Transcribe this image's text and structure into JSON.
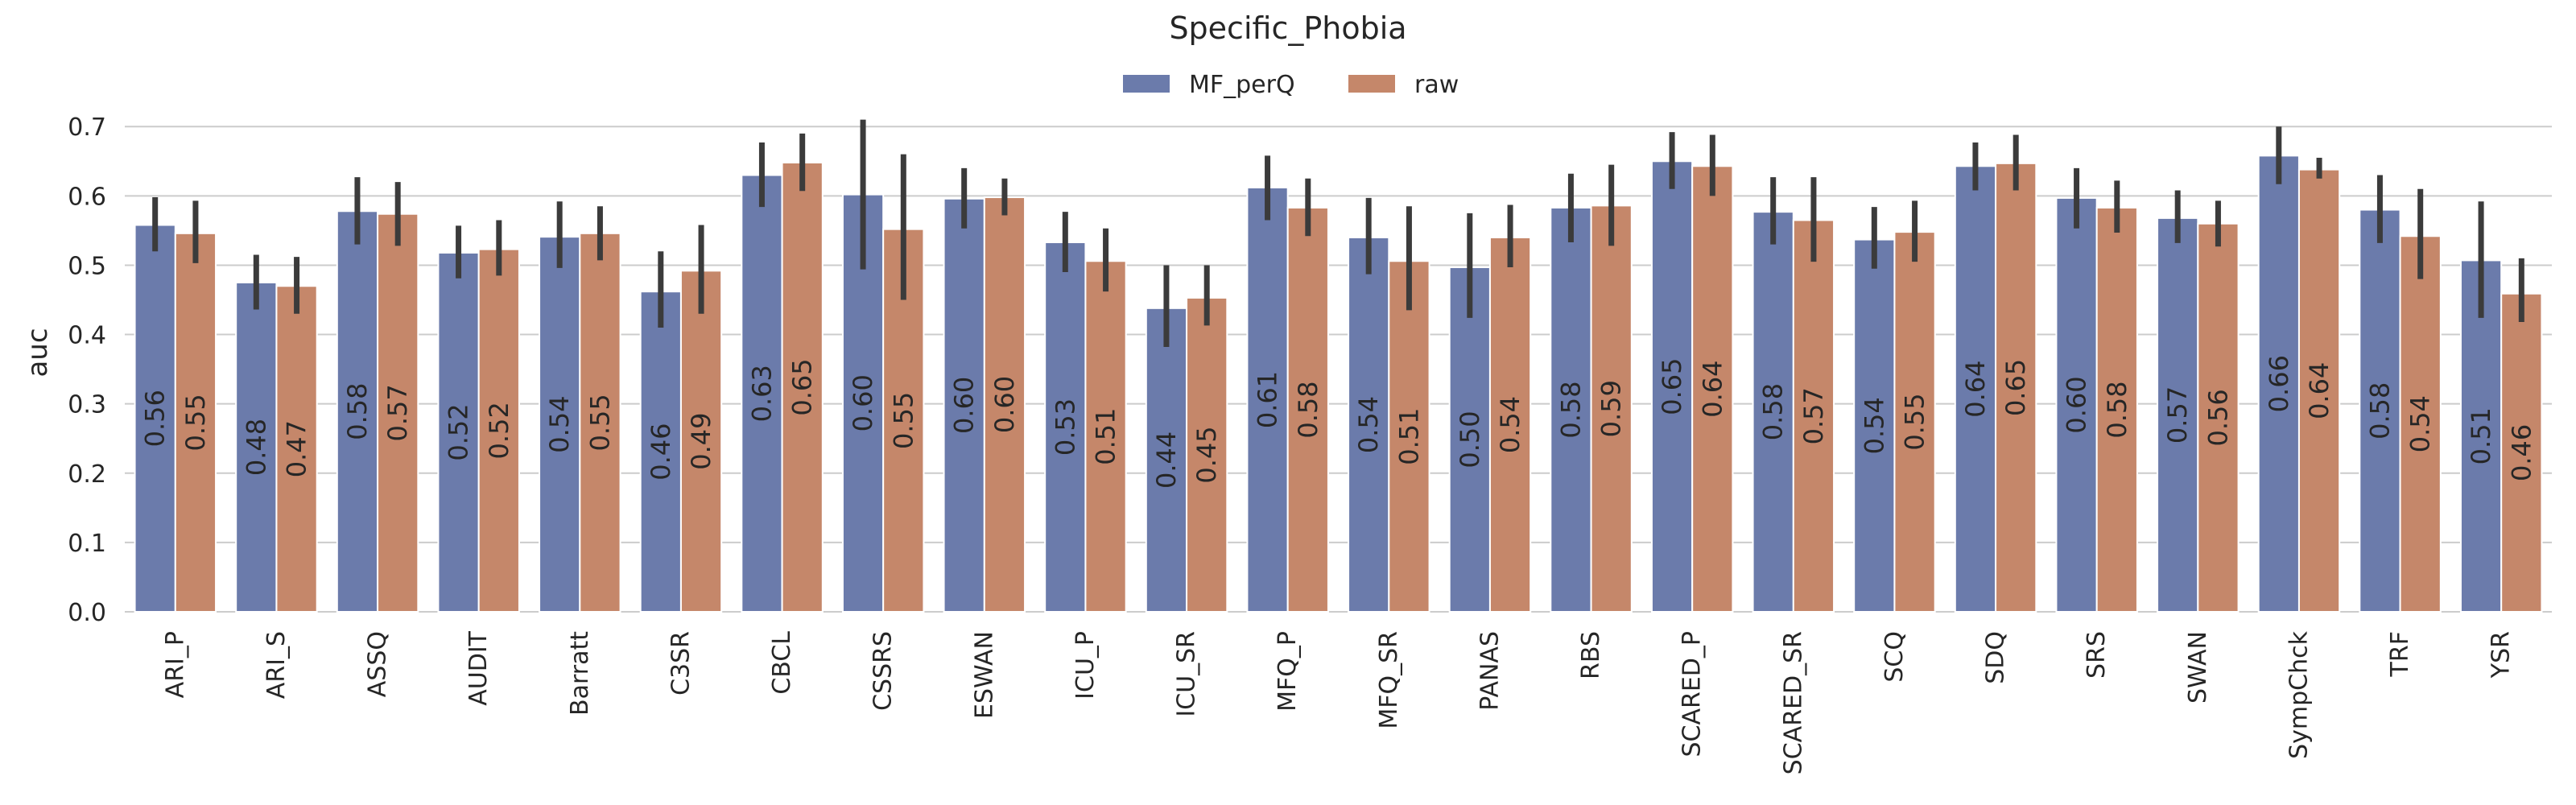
{
  "chart_data": {
    "type": "bar",
    "title": "Specific_Phobia",
    "xlabel": "",
    "ylabel": "auc",
    "ylim": [
      0,
      0.72
    ],
    "yticks": [
      "0.0",
      "0.1",
      "0.2",
      "0.3",
      "0.4",
      "0.5",
      "0.6",
      "0.7"
    ],
    "grid": true,
    "legend_position": "top-center",
    "categories": [
      "ARI_P",
      "ARI_S",
      "ASSQ",
      "AUDIT",
      "Barratt",
      "C3SR",
      "CBCL",
      "CSSRS",
      "ESWAN",
      "ICU_P",
      "ICU_SR",
      "MFQ_P",
      "MFQ_SR",
      "PANAS",
      "RBS",
      "SCARED_P",
      "SCARED_SR",
      "SCQ",
      "SDQ",
      "SRS",
      "SWAN",
      "SympChck",
      "TRF",
      "YSR"
    ],
    "series": [
      {
        "name": "MF_perQ",
        "color": "#6b7bab",
        "values": [
          0.558,
          0.475,
          0.578,
          0.518,
          0.541,
          0.462,
          0.63,
          0.602,
          0.596,
          0.533,
          0.438,
          0.612,
          0.54,
          0.497,
          0.583,
          0.65,
          0.577,
          0.537,
          0.643,
          0.597,
          0.568,
          0.658,
          0.58,
          0.507
        ],
        "labels": [
          "0.56",
          "0.48",
          "0.58",
          "0.52",
          "0.54",
          "0.46",
          "0.63",
          "0.60",
          "0.60",
          "0.53",
          "0.44",
          "0.61",
          "0.54",
          "0.50",
          "0.58",
          "0.65",
          "0.58",
          "0.54",
          "0.64",
          "0.60",
          "0.57",
          "0.66",
          "0.58",
          "0.51"
        ],
        "err_low": [
          0.52,
          0.436,
          0.53,
          0.481,
          0.496,
          0.41,
          0.584,
          0.494,
          0.553,
          0.49,
          0.382,
          0.565,
          0.487,
          0.424,
          0.533,
          0.61,
          0.53,
          0.495,
          0.608,
          0.553,
          0.532,
          0.617,
          0.532,
          0.424
        ],
        "err_high": [
          0.598,
          0.515,
          0.627,
          0.557,
          0.592,
          0.52,
          0.677,
          0.71,
          0.64,
          0.577,
          0.5,
          0.658,
          0.597,
          0.575,
          0.632,
          0.692,
          0.627,
          0.584,
          0.677,
          0.64,
          0.608,
          0.7,
          0.63,
          0.592
        ]
      },
      {
        "name": "raw",
        "color": "#c5876a",
        "values": [
          0.546,
          0.47,
          0.574,
          0.523,
          0.546,
          0.492,
          0.648,
          0.552,
          0.598,
          0.506,
          0.453,
          0.583,
          0.506,
          0.54,
          0.586,
          0.643,
          0.565,
          0.548,
          0.647,
          0.583,
          0.56,
          0.638,
          0.542,
          0.459
        ],
        "labels": [
          "0.55",
          "0.47",
          "0.57",
          "0.52",
          "0.55",
          "0.49",
          "0.65",
          "0.55",
          "0.60",
          "0.51",
          "0.45",
          "0.58",
          "0.51",
          "0.54",
          "0.59",
          "0.64",
          "0.57",
          "0.55",
          "0.65",
          "0.58",
          "0.56",
          "0.64",
          "0.54",
          "0.46"
        ],
        "err_low": [
          0.503,
          0.43,
          0.528,
          0.485,
          0.507,
          0.43,
          0.607,
          0.45,
          0.572,
          0.462,
          0.413,
          0.542,
          0.435,
          0.497,
          0.528,
          0.6,
          0.505,
          0.505,
          0.608,
          0.547,
          0.527,
          0.625,
          0.48,
          0.418
        ],
        "err_high": [
          0.593,
          0.512,
          0.62,
          0.565,
          0.585,
          0.558,
          0.69,
          0.66,
          0.625,
          0.553,
          0.5,
          0.625,
          0.585,
          0.587,
          0.645,
          0.688,
          0.627,
          0.593,
          0.688,
          0.622,
          0.593,
          0.655,
          0.61,
          0.51
        ]
      }
    ]
  }
}
